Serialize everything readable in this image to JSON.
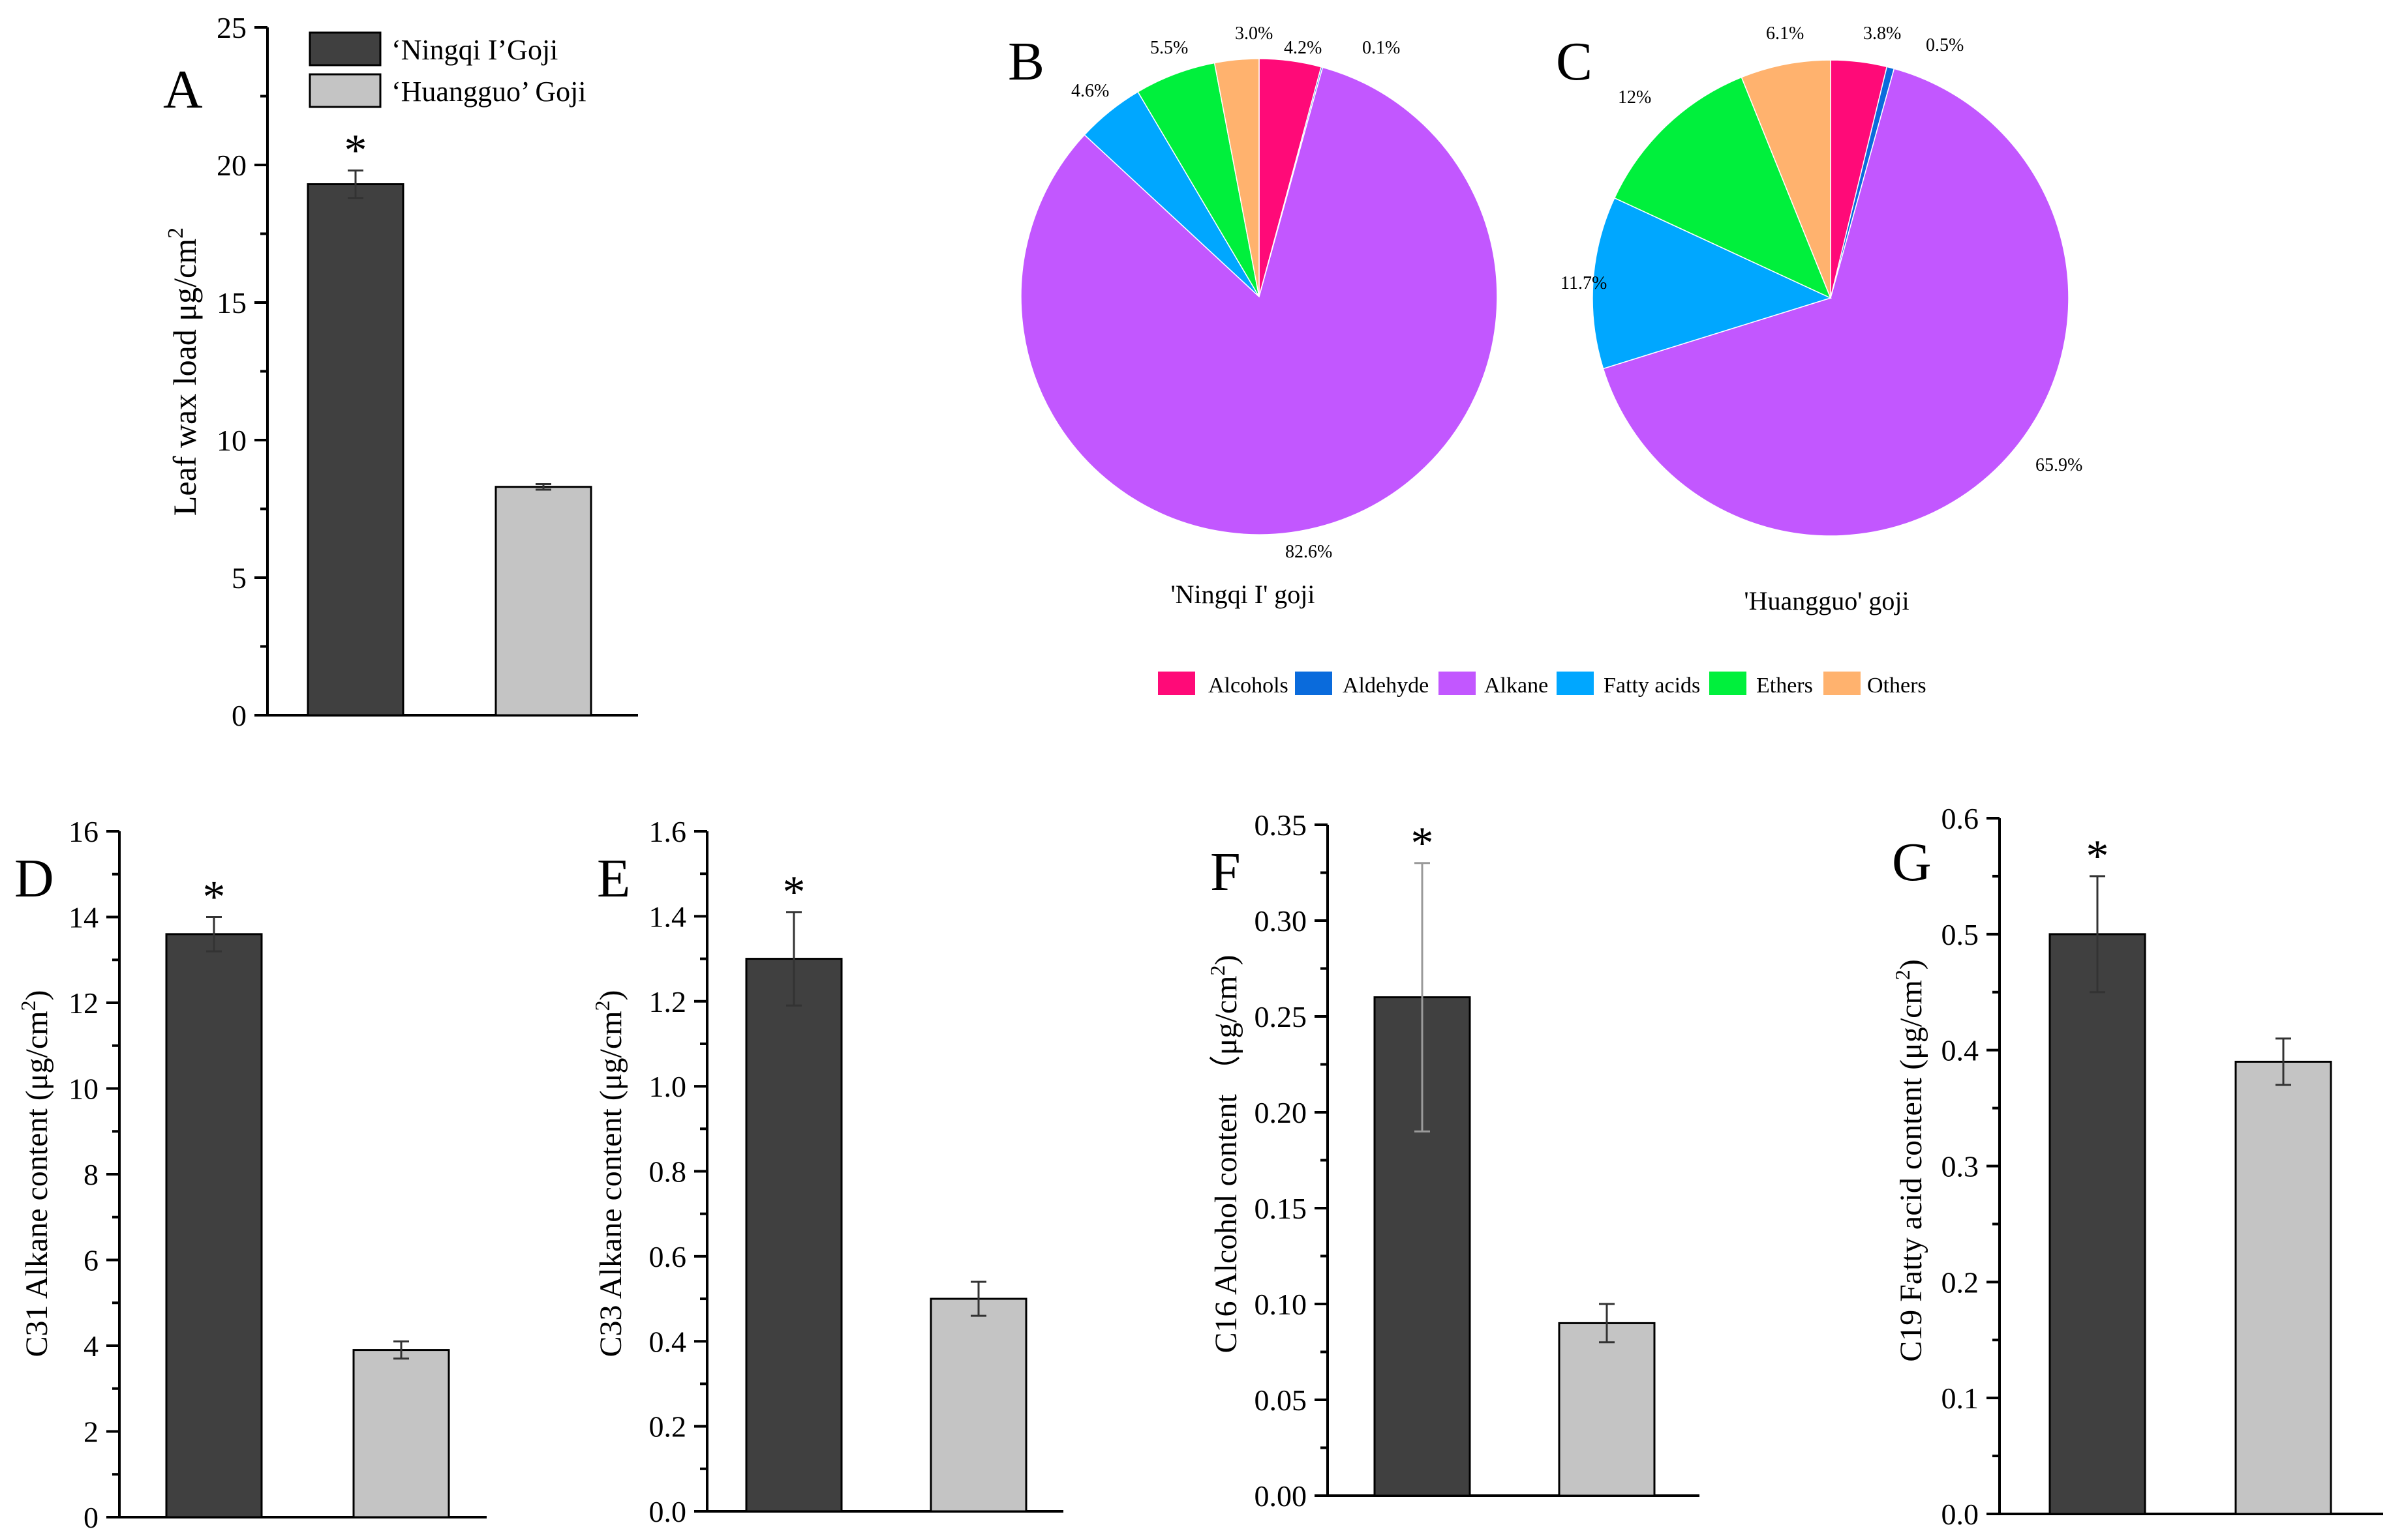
{
  "colors": {
    "ningqi": "#404040",
    "huangguo": "#c4c4c4",
    "alcohols": "#ff0a78",
    "aldehyde": "#0a6bdc",
    "alkane": "#c257ff",
    "fatty_acids": "#00a7ff",
    "ethers": "#00f03c",
    "others": "#ffb26e"
  },
  "panel_a": {
    "letter": "A",
    "ylabel": "Leaf wax load μg/cm",
    "ylabel_sup": "2",
    "legend": [
      "‘Ningqi I’Goji",
      "‘Huangguo’ Goji"
    ],
    "star": "*"
  },
  "pies": {
    "legend": [
      "Alcohols",
      "Aldehyde",
      "Alkane",
      "Fatty acids",
      "Ethers",
      "Others"
    ],
    "b": {
      "letter": "B",
      "caption": "'Ningqi I' goji"
    },
    "c": {
      "letter": "C",
      "caption": "'Huangguo' goji"
    }
  },
  "chart_data": [
    {
      "type": "bar",
      "panel": "A",
      "categories": [
        "‘Ningqi I’Goji",
        "‘Huangguo’ Goji"
      ],
      "values": [
        19.3,
        8.3
      ],
      "errors": [
        0.5,
        0.1
      ],
      "significance": [
        "*",
        ""
      ],
      "ylabel": "Leaf wax load μg/cm2",
      "ylim": [
        0,
        25
      ],
      "yticks": [
        0,
        5,
        10,
        15,
        20,
        25
      ],
      "ytick_labels": [
        "0",
        "5",
        "10",
        "15",
        "20",
        "25"
      ]
    },
    {
      "type": "pie",
      "panel": "B",
      "title": "'Ningqi I' goji",
      "labels": [
        "Alcohols",
        "Aldehyde",
        "Alkane",
        "Fatty acids",
        "Ethers",
        "Others"
      ],
      "values": [
        4.2,
        0.1,
        82.6,
        4.6,
        5.5,
        3.0
      ],
      "value_labels": [
        "4.2%",
        "0.1%",
        "82.6%",
        "4.6%",
        "5.5%",
        "3.0%"
      ]
    },
    {
      "type": "pie",
      "panel": "C",
      "title": "'Huangguo' goji",
      "labels": [
        "Alcohols",
        "Aldehyde",
        "Alkane",
        "Fatty acids",
        "Ethers",
        "Others"
      ],
      "values": [
        3.8,
        0.5,
        65.9,
        11.7,
        12,
        6.1
      ],
      "value_labels": [
        "3.8%",
        "0.5%",
        "65.9%",
        "11.7%",
        "12%",
        "6.1%"
      ]
    },
    {
      "type": "bar",
      "panel": "D",
      "categories": [
        "‘Ningqi I’Goji",
        "‘Huangguo’ Goji"
      ],
      "values": [
        13.6,
        3.9
      ],
      "errors": [
        0.4,
        0.2
      ],
      "significance": [
        "*",
        ""
      ],
      "ylabel": "C31 Alkane content (μg/cm2)",
      "ylim": [
        0,
        16
      ],
      "yticks": [
        0,
        2,
        4,
        6,
        8,
        10,
        12,
        14,
        16
      ],
      "ytick_labels": [
        "0",
        "2",
        "4",
        "6",
        "8",
        "10",
        "12",
        "14",
        "16"
      ]
    },
    {
      "type": "bar",
      "panel": "E",
      "categories": [
        "‘Ningqi I’Goji",
        "‘Huangguo’ Goji"
      ],
      "values": [
        1.3,
        0.5
      ],
      "errors": [
        0.11,
        0.04
      ],
      "significance": [
        "*",
        ""
      ],
      "ylabel": "C33 Alkane content (μg/cm2)",
      "ylim": [
        0,
        1.6
      ],
      "yticks": [
        0,
        0.2,
        0.4,
        0.6,
        0.8,
        1.0,
        1.2,
        1.4,
        1.6
      ],
      "ytick_labels": [
        "0.0",
        "0.2",
        "0.4",
        "0.6",
        "0.8",
        "1.0",
        "1.2",
        "1.4",
        "1.6"
      ]
    },
    {
      "type": "bar",
      "panel": "F",
      "categories": [
        "‘Ningqi I’Goji",
        "‘Huangguo’ Goji"
      ],
      "values": [
        0.26,
        0.09
      ],
      "errors": [
        0.07,
        0.01
      ],
      "significance": [
        "*",
        ""
      ],
      "ylabel": "C16 Alcohol content （μg/cm2)",
      "ylim": [
        0,
        0.35
      ],
      "yticks": [
        0,
        0.05,
        0.1,
        0.15,
        0.2,
        0.25,
        0.3,
        0.35
      ],
      "ytick_labels": [
        "0.00",
        "0.05",
        "0.10",
        "0.15",
        "0.20",
        "0.25",
        "0.30",
        "0.35"
      ]
    },
    {
      "type": "bar",
      "panel": "G",
      "categories": [
        "‘Ningqi I’Goji",
        "‘Huangguo’ Goji"
      ],
      "values": [
        0.5,
        0.39
      ],
      "errors": [
        0.05,
        0.02
      ],
      "significance": [
        "*",
        ""
      ],
      "ylabel": "C19 Fatty acid content (μg/cm2)",
      "ylim": [
        0,
        0.6
      ],
      "yticks": [
        0,
        0.1,
        0.2,
        0.3,
        0.4,
        0.5,
        0.6
      ],
      "ytick_labels": [
        "0.0",
        "0.1",
        "0.2",
        "0.3",
        "0.4",
        "0.5",
        "0.6"
      ]
    }
  ]
}
